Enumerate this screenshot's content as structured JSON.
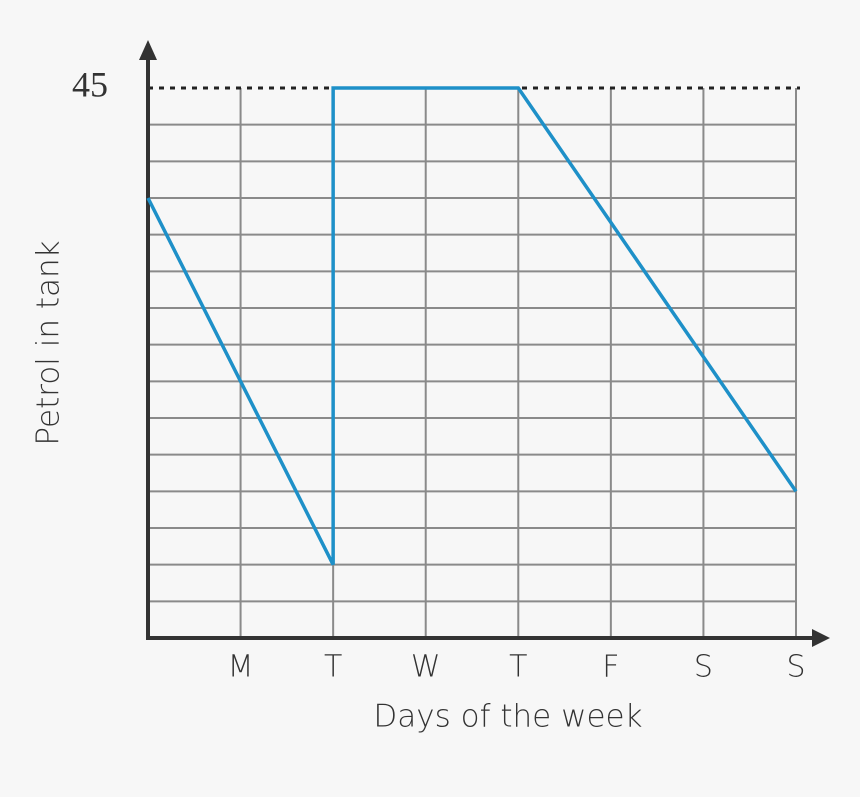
{
  "chart_data": {
    "type": "line",
    "ylabel": "Petrol in tank",
    "xlabel": "Days of the week",
    "xlim": [
      0,
      7
    ],
    "xticks": [
      {
        "value": 1,
        "label": "M"
      },
      {
        "value": 2,
        "label": "T"
      },
      {
        "value": 3,
        "label": "W"
      },
      {
        "value": 4,
        "label": "T"
      },
      {
        "value": 5,
        "label": "F"
      },
      {
        "value": 6,
        "label": "S"
      },
      {
        "value": 7,
        "label": "S"
      }
    ],
    "ylim": [
      0,
      45
    ],
    "yticks": [
      45
    ],
    "ygrid": [
      3,
      6,
      9,
      12,
      15,
      18,
      21,
      24,
      27,
      30,
      33,
      36,
      39,
      42
    ],
    "grid": true,
    "series": [
      {
        "color": "#1e90c8",
        "x": [
          0,
          2,
          2,
          4,
          7
        ],
        "values": [
          36,
          6,
          45,
          45,
          12
        ]
      }
    ]
  }
}
